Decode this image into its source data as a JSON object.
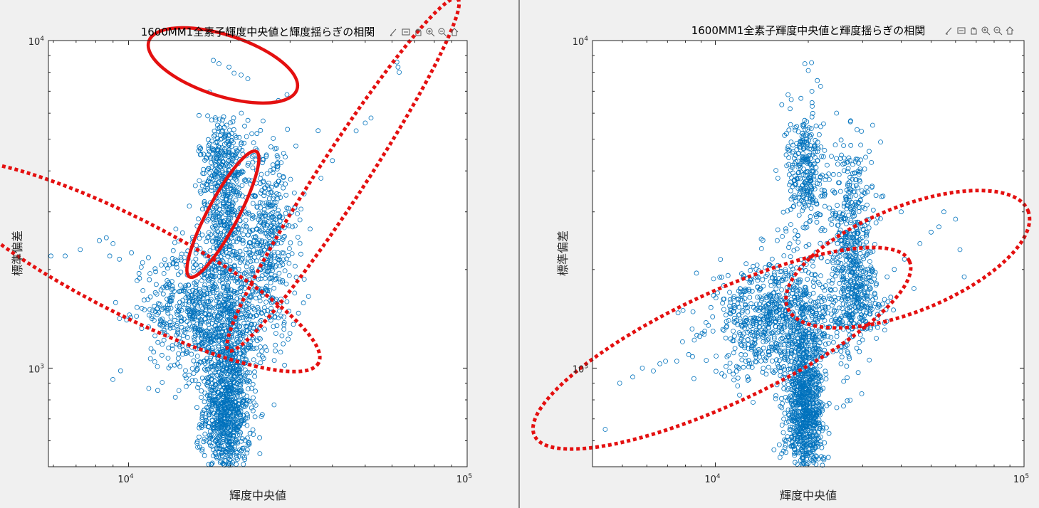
{
  "colors": {
    "marker": "#0072bd",
    "annotation": "#e41010",
    "background": "#f0f0f0",
    "axes": "#ffffff"
  },
  "toolbar_icons": [
    "brush-icon",
    "datatip-icon",
    "pan-icon",
    "zoom-in-icon",
    "zoom-out-icon",
    "home-icon"
  ],
  "chart_data": [
    {
      "type": "scatter",
      "title": "1600MM1全素子輝度中央値と輝度揺らぎの相関",
      "xlabel": "輝度中央値",
      "ylabel": "標準偏差",
      "x_scale": "log",
      "y_scale": "log",
      "xlim": [
        5800,
        100000
      ],
      "ylim": [
        500,
        10000
      ],
      "x_ticks": [
        {
          "base": "10",
          "exp": "4",
          "value": 10000
        },
        {
          "base": "10",
          "exp": "5",
          "value": 100000
        }
      ],
      "y_ticks": [
        {
          "base": "10",
          "exp": "3",
          "value": 1000
        },
        {
          "base": "10",
          "exp": "4",
          "value": 10000
        }
      ],
      "grid": false,
      "marker": "open-circle",
      "clusters": [
        {
          "cx": 19500,
          "cy": 750,
          "sx": 0.035,
          "sy": 0.12,
          "n": 900
        },
        {
          "cx": 17500,
          "cy": 1500,
          "sx": 0.09,
          "sy": 0.1,
          "n": 900
        },
        {
          "cx": 19000,
          "cy": 4200,
          "sx": 0.035,
          "sy": 0.08,
          "n": 300
        },
        {
          "cx": 26000,
          "cy": 2500,
          "sx": 0.04,
          "sy": 0.15,
          "n": 400
        },
        {
          "cx": 19500,
          "cy": 2700,
          "sx": 0.04,
          "sy": 0.08,
          "n": 250
        }
      ],
      "scattered_points": [
        [
          5900,
          2200
        ],
        [
          6500,
          2200
        ],
        [
          7200,
          2300
        ],
        [
          8200,
          2450
        ],
        [
          8600,
          2500
        ],
        [
          9000,
          2400
        ],
        [
          8800,
          2200
        ],
        [
          9400,
          2150
        ],
        [
          10200,
          2250
        ],
        [
          11000,
          2100
        ],
        [
          10600,
          1850
        ],
        [
          12000,
          1700
        ],
        [
          13000,
          1850
        ],
        [
          11600,
          1650
        ],
        [
          17800,
          8700
        ],
        [
          18500,
          8500
        ],
        [
          19800,
          8300
        ],
        [
          20500,
          7950
        ],
        [
          21500,
          7850
        ],
        [
          22500,
          7650
        ],
        [
          62000,
          8600
        ],
        [
          62500,
          8300
        ],
        [
          63000,
          8000
        ],
        [
          52000,
          5800
        ],
        [
          47000,
          5300
        ],
        [
          50000,
          5600
        ],
        [
          40000,
          4300
        ],
        [
          37000,
          3800
        ],
        [
          33000,
          3400
        ],
        [
          31000,
          3100
        ],
        [
          28000,
          2900
        ],
        [
          24000,
          1300
        ],
        [
          23000,
          1150
        ],
        [
          22000,
          940
        ]
      ],
      "annotations": [
        {
          "shape": "ellipse",
          "style": "solid",
          "cx": 19000,
          "cy": 8400,
          "rx_dec": 0.23,
          "ry_dec": 0.09,
          "angle": 18
        },
        {
          "shape": "ellipse",
          "style": "solid",
          "cx": 19000,
          "cy": 2950,
          "rx_dec": 0.21,
          "ry_dec": 0.045,
          "angle": -62
        },
        {
          "shape": "ellipse",
          "style": "dotted",
          "cx": 10000,
          "cy": 2050,
          "rx_dec": 0.63,
          "ry_dec": 0.14,
          "angle": 27
        },
        {
          "shape": "ellipse",
          "style": "dotted",
          "cx": 43000,
          "cy": 3900,
          "rx_dec": 0.62,
          "ry_dec": 0.07,
          "angle": -57
        }
      ]
    },
    {
      "type": "scatter",
      "title": "1600MM1全素子輝度中央値と輝度揺らぎの相関",
      "xlabel": "輝度中央値",
      "ylabel": "標準偏差",
      "x_scale": "log",
      "y_scale": "log",
      "xlim": [
        4000,
        100000
      ],
      "ylim": [
        500,
        10000
      ],
      "x_ticks": [
        {
          "base": "10",
          "exp": "4",
          "value": 10000
        },
        {
          "base": "10",
          "exp": "5",
          "value": 100000
        }
      ],
      "y_ticks": [
        {
          "base": "10",
          "exp": "3",
          "value": 1000
        },
        {
          "base": "10",
          "exp": "4",
          "value": 10000
        }
      ],
      "grid": false,
      "marker": "open-circle",
      "clusters": [
        {
          "cx": 19500,
          "cy": 730,
          "sx": 0.03,
          "sy": 0.12,
          "n": 900
        },
        {
          "cx": 16500,
          "cy": 1400,
          "sx": 0.11,
          "sy": 0.09,
          "n": 900
        },
        {
          "cx": 19500,
          "cy": 4000,
          "sx": 0.03,
          "sy": 0.1,
          "n": 300
        },
        {
          "cx": 27500,
          "cy": 2600,
          "sx": 0.035,
          "sy": 0.15,
          "n": 400
        },
        {
          "cx": 29000,
          "cy": 1650,
          "sx": 0.04,
          "sy": 0.06,
          "n": 200
        }
      ],
      "scattered_points": [
        [
          4000,
          510
        ],
        [
          4400,
          650
        ],
        [
          4900,
          900
        ],
        [
          5400,
          940
        ],
        [
          5800,
          1000
        ],
        [
          6300,
          980
        ],
        [
          6900,
          1050
        ],
        [
          7500,
          1050
        ],
        [
          8200,
          1100
        ],
        [
          8900,
          1250
        ],
        [
          9500,
          1350
        ],
        [
          19500,
          8500
        ],
        [
          20000,
          8100
        ],
        [
          36000,
          1900
        ],
        [
          38000,
          2000
        ],
        [
          41000,
          2150
        ],
        [
          44000,
          1750
        ],
        [
          46000,
          2400
        ],
        [
          50000,
          2600
        ],
        [
          53000,
          2700
        ],
        [
          55000,
          3000
        ],
        [
          60000,
          2850
        ],
        [
          62000,
          2300
        ],
        [
          64000,
          1900
        ],
        [
          40000,
          3000
        ]
      ],
      "annotations": [
        {
          "shape": "ellipse",
          "style": "dotted",
          "cx": 10500,
          "cy": 1150,
          "rx_dec": 0.67,
          "ry_dec": 0.18,
          "angle": -25
        },
        {
          "shape": "ellipse",
          "style": "dotted",
          "cx": 42000,
          "cy": 2150,
          "rx_dec": 0.42,
          "ry_dec": 0.17,
          "angle": -22
        }
      ]
    }
  ]
}
